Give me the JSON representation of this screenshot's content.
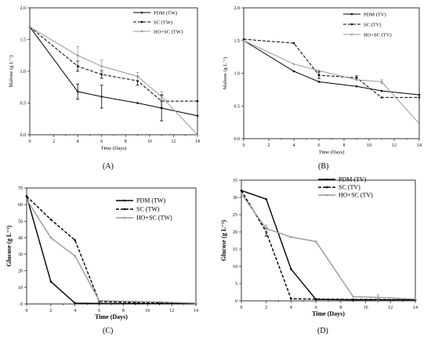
{
  "chart_data": [
    {
      "id": "A",
      "type": "line",
      "panel_label": "(A)",
      "ylabel": "Maltose (g L⁻¹)",
      "xlabel": "Time (Days)",
      "xlim": [
        0,
        14
      ],
      "ylim": [
        0,
        2.0
      ],
      "xticks": [
        0,
        2,
        4,
        6,
        8,
        10,
        12,
        14
      ],
      "yticks": [
        0.0,
        0.5,
        1.0,
        1.5,
        2.0
      ],
      "ytick_labels": [
        "0.0",
        "0.5",
        "1.0",
        "1.5",
        "2.0"
      ],
      "legend_position": "top-right",
      "series": [
        {
          "name": "PDM (TW)",
          "style": "solid",
          "color": "#000000",
          "marker": "circle",
          "x": [
            0,
            4,
            6,
            9,
            11,
            14
          ],
          "y": [
            1.7,
            0.68,
            0.6,
            0.5,
            0.42,
            0.3
          ],
          "err": [
            0,
            0.12,
            0.18,
            0,
            0.2,
            0
          ]
        },
        {
          "name": "SC (TW)",
          "style": "dashed",
          "color": "#000000",
          "marker": "circle",
          "x": [
            0,
            4,
            6,
            9,
            11,
            14
          ],
          "y": [
            1.7,
            1.08,
            0.95,
            0.85,
            0.53,
            0.53
          ],
          "err": [
            0,
            0.08,
            0.06,
            0.07,
            0.1,
            0
          ]
        },
        {
          "name": "HO+SC (TW)",
          "style": "solid",
          "color": "#999999",
          "marker": "circle",
          "x": [
            0,
            4,
            6,
            9,
            11,
            14
          ],
          "y": [
            1.7,
            1.25,
            1.08,
            0.92,
            0.6,
            0.0
          ],
          "err": [
            0,
            0.14,
            0.1,
            0.06,
            0.08,
            0
          ]
        }
      ]
    },
    {
      "id": "B",
      "type": "line",
      "panel_label": "(B)",
      "ylabel": "Maltose (g L⁻¹)",
      "xlabel": "Time (Days)",
      "xlim": [
        0,
        14
      ],
      "ylim": [
        0,
        2.0
      ],
      "xticks": [
        0,
        2,
        4,
        6,
        8,
        10,
        12,
        14
      ],
      "yticks": [
        0.0,
        0.5,
        1.0,
        1.5,
        2.0
      ],
      "ytick_labels": [
        "0.0",
        "0.5",
        "1.0",
        "1.5",
        "2.0"
      ],
      "legend_position": "top-right",
      "series": [
        {
          "name": "PDM (TV)",
          "style": "solid",
          "color": "#000000",
          "marker": "circle",
          "x": [
            0,
            4,
            6,
            9,
            11,
            14
          ],
          "y": [
            1.5,
            1.03,
            0.87,
            0.8,
            0.73,
            0.67
          ],
          "err": [
            0,
            0,
            0,
            0,
            0,
            0
          ]
        },
        {
          "name": "SC (TV)",
          "style": "dashed",
          "color": "#000000",
          "marker": "circle",
          "x": [
            0,
            4,
            6,
            9,
            11,
            14
          ],
          "y": [
            1.52,
            1.46,
            0.97,
            0.93,
            0.63,
            0.63
          ],
          "err": [
            0,
            0,
            0.05,
            0.03,
            0,
            0
          ]
        },
        {
          "name": "HO+SC (TV)",
          "style": "solid",
          "color": "#999999",
          "marker": "circle",
          "x": [
            0,
            4,
            6,
            9,
            11,
            14
          ],
          "y": [
            1.5,
            1.14,
            1.04,
            0.9,
            0.87,
            0.23
          ],
          "err": [
            0,
            0,
            0,
            0,
            0.03,
            0
          ]
        }
      ]
    },
    {
      "id": "C",
      "type": "line",
      "panel_label": "(C)",
      "ylabel": "Glucose   (g L⁻¹)",
      "xlabel": "Time (Days)",
      "xlim": [
        0,
        14
      ],
      "ylim": [
        0,
        70
      ],
      "xticks": [
        0,
        2,
        4,
        6,
        8,
        10,
        12,
        14
      ],
      "yticks": [
        0,
        10,
        20,
        30,
        40,
        50,
        60,
        70
      ],
      "ytick_labels": [
        "0",
        "10",
        "20",
        "30",
        "40",
        "50",
        "60",
        "70"
      ],
      "legend_position": "top-right",
      "series": [
        {
          "name": "PDM (TW)",
          "style": "solid",
          "color": "#000000",
          "marker": "circle",
          "x": [
            0,
            2,
            4,
            6,
            9,
            11,
            14
          ],
          "y": [
            65,
            13.5,
            0.5,
            0.3,
            0.2,
            0.2,
            0.2
          ],
          "err": [
            0,
            0,
            0,
            0,
            0,
            0,
            0
          ]
        },
        {
          "name": "SC (TW)",
          "style": "dashed",
          "color": "#000000",
          "marker": "circle",
          "x": [
            0,
            2,
            4,
            6,
            9,
            11,
            14
          ],
          "y": [
            65,
            51,
            38.5,
            1.5,
            0.8,
            0.6,
            0.4
          ],
          "err": [
            0,
            0,
            0,
            0,
            0,
            0,
            0
          ]
        },
        {
          "name": "HO+SC (TW)",
          "style": "solid",
          "color": "#999999",
          "marker": "circle",
          "x": [
            0,
            2,
            4,
            6,
            9,
            11,
            14
          ],
          "y": [
            63,
            40,
            29,
            2,
            1.5,
            1.2,
            0.5
          ],
          "err": [
            0,
            0,
            0,
            0,
            0,
            0,
            0
          ]
        }
      ]
    },
    {
      "id": "D",
      "type": "line",
      "panel_label": "(D)",
      "ylabel": "Glucose   (g L⁻¹)",
      "xlabel": "Time (Days)",
      "xlim": [
        0,
        14
      ],
      "ylim": [
        0,
        35
      ],
      "xticks": [
        0,
        2,
        4,
        6,
        8,
        10,
        12,
        14
      ],
      "yticks": [
        0,
        5,
        10,
        15,
        20,
        25,
        30,
        35
      ],
      "ytick_labels": [
        "0",
        "5",
        "10",
        "15",
        "20",
        "25",
        "30",
        "35"
      ],
      "legend_position": "top-right",
      "series": [
        {
          "name": "PDM (TV)",
          "style": "solid",
          "color": "#000000",
          "marker": "circle",
          "x": [
            0,
            2,
            4,
            6,
            9,
            11,
            14
          ],
          "y": [
            32,
            29.5,
            9.2,
            0.4,
            0.3,
            0.3,
            0.3
          ],
          "err": [
            0,
            0,
            0,
            0,
            0,
            0,
            0
          ]
        },
        {
          "name": "SC (TV)",
          "style": "dashed",
          "color": "#000000",
          "marker": "circle",
          "x": [
            0,
            2,
            4,
            6,
            9,
            11,
            14
          ],
          "y": [
            32,
            20,
            0.6,
            0.5,
            0.4,
            0.4,
            0.3
          ],
          "err": [
            0,
            1.2,
            0,
            0,
            0,
            0,
            0
          ]
        },
        {
          "name": "HO+SC (TV)",
          "style": "solid",
          "color": "#999999",
          "marker": "circle",
          "x": [
            0,
            2,
            4,
            6,
            9,
            11,
            14
          ],
          "y": [
            31,
            21,
            18.5,
            17.2,
            1.2,
            1.0,
            0.5
          ],
          "err": [
            0,
            1.0,
            0,
            0,
            0,
            0.8,
            0
          ]
        }
      ]
    }
  ]
}
